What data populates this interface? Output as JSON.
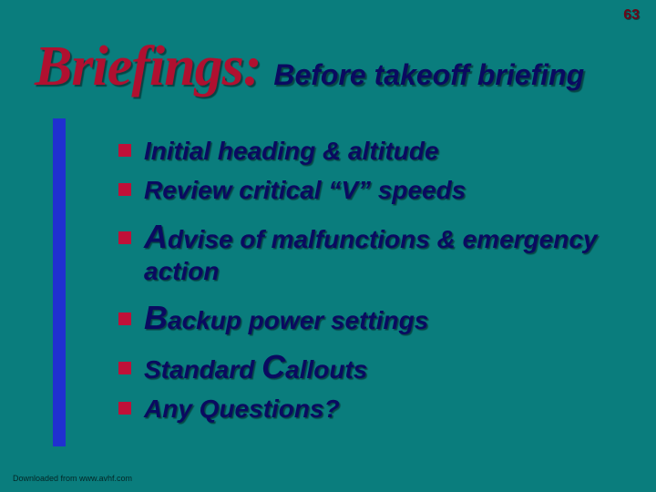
{
  "colors": {
    "background": "#0a7d7d",
    "title_main": "#b01030",
    "title_sub": "#0a0a60",
    "bullet_square": "#c01038",
    "bullet_text": "#0a0a60",
    "page_number": "#6a0818",
    "accent_bar": "#2030d0"
  },
  "page_number": "63",
  "title": {
    "main": "Briefings:",
    "sub": "Before takeoff briefing"
  },
  "bullets": [
    {
      "text": "Initial heading & altitude",
      "emph_first": false,
      "gap": false
    },
    {
      "text": "Review critical “V” speeds",
      "emph_first": false,
      "gap": false
    },
    {
      "first": "A",
      "rest": "dvise of malfunctions & emergency action",
      "emph_first": true,
      "gap": true
    },
    {
      "first": "B",
      "rest": "ackup power settings",
      "emph_first": true,
      "gap": true
    },
    {
      "pre": "Standard ",
      "first": "C",
      "rest": "allouts",
      "emph_first": true,
      "gap": true
    },
    {
      "text": "Any Questions?",
      "emph_first": false,
      "gap": false
    }
  ],
  "footer": "Downloaded from www.avhf.com",
  "fontsize": {
    "title_main": 62,
    "title_sub": 32,
    "bullet": 28,
    "emph": 36,
    "page_number": 16,
    "footer": 9
  }
}
